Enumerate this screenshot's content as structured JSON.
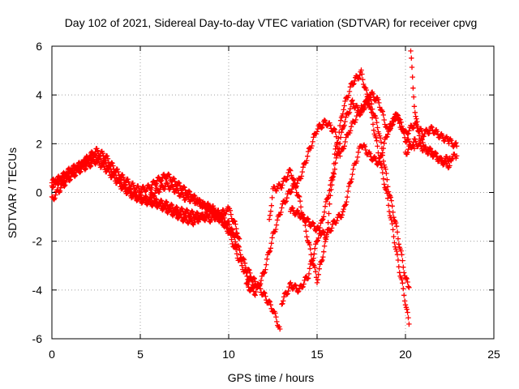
{
  "chart_data": {
    "type": "scatter",
    "title": "Day 102 of 2021, Sidereal Day-to-day VTEC variation (SDTVAR) for receiver cpvg",
    "xlabel": "GPS time / hours",
    "ylabel": "SDTVAR / TECUs",
    "xlim": [
      0,
      25
    ],
    "ylim": [
      -6,
      6
    ],
    "xticks": [
      "0",
      "5",
      "10",
      "15",
      "20",
      "25"
    ],
    "yticks": [
      "-6",
      "-4",
      "-2",
      "0",
      "2",
      "4",
      "6"
    ],
    "grid": true,
    "legend": "none",
    "marker": "plus",
    "color": "#ff0000",
    "series": [
      {
        "x": [
          0,
          0.5,
          1,
          1.5,
          2,
          2.5,
          3,
          3.5,
          4,
          4.5,
          5,
          5.5,
          6,
          6.5,
          7,
          7.5,
          8,
          8.5,
          9,
          9.5,
          10,
          10.3,
          10.6
        ],
        "y": [
          0.4,
          0.6,
          0.9,
          1.1,
          1.3,
          1.5,
          1.2,
          0.8,
          0.3,
          0.0,
          -0.2,
          -0.3,
          -0.4,
          -0.5,
          -0.7,
          -0.8,
          -0.9,
          -1.0,
          -1.1,
          -0.9,
          -0.7,
          -1.2,
          -1.9
        ]
      },
      {
        "x": [
          0,
          0.5,
          1,
          1.5,
          2,
          2.5,
          3,
          3.5,
          4,
          4.5,
          5,
          5.5,
          6,
          6.5,
          7,
          7.5,
          8,
          8.5,
          9,
          9.5,
          10,
          10.5
        ],
        "y": [
          -0.3,
          0.2,
          0.6,
          0.9,
          1.1,
          1.3,
          1.0,
          0.6,
          0.2,
          -0.1,
          -0.3,
          -0.4,
          -0.5,
          -0.7,
          -0.9,
          -1.1,
          -1.2,
          -1.0,
          -0.8,
          -1.1,
          -1.5,
          -1.8
        ]
      },
      {
        "x": [
          0,
          0.5,
          1,
          1.5,
          2,
          2.5,
          3,
          3.5,
          4,
          4.5,
          5,
          5.5,
          6,
          6.5,
          7,
          7.5,
          8,
          8.5,
          9,
          9.5,
          10,
          10.5,
          11,
          11.5
        ],
        "y": [
          0.3,
          0.5,
          0.8,
          1.0,
          1.4,
          1.7,
          1.5,
          1.0,
          0.6,
          0.3,
          0.1,
          0.2,
          0.5,
          0.7,
          0.4,
          0.1,
          -0.2,
          -0.5,
          -0.7,
          -1.0,
          -1.6,
          -2.6,
          -3.4,
          -3.8
        ]
      },
      {
        "x": [
          5.5,
          6,
          6.5,
          7,
          7.5,
          8,
          8.5,
          9,
          9.5,
          10,
          10.5,
          11,
          11.5,
          12,
          12.5,
          12.9
        ],
        "y": [
          -0.2,
          0.1,
          0.3,
          0.1,
          -0.2,
          -0.3,
          -0.5,
          -0.6,
          -0.9,
          -1.3,
          -2.2,
          -3.1,
          -3.7,
          -4.2,
          -4.8,
          -5.6
        ]
      },
      {
        "x": [
          11,
          11.5,
          12,
          12.5,
          13,
          13.5,
          14,
          14.5,
          15,
          15.5,
          16,
          16.3,
          16.8,
          17.5,
          18,
          18.5,
          19,
          19.5,
          20,
          20.2
        ],
        "y": [
          -3.8,
          -4.1,
          -3.3,
          -1.8,
          -0.6,
          0.1,
          0.5,
          1.6,
          2.6,
          2.9,
          2.5,
          1.5,
          2.5,
          3.5,
          3.8,
          2.5,
          0.3,
          -1.5,
          -3.5,
          -3.9
        ]
      },
      {
        "x": [
          12.3,
          12.5,
          13,
          13.5,
          14,
          14.5,
          15,
          15.5,
          16,
          16.5,
          17,
          17.5,
          18,
          18.5,
          19,
          19.5,
          20,
          20.2
        ],
        "y": [
          -1.2,
          0.1,
          0.3,
          0.9,
          -0.3,
          -2.0,
          -3.6,
          -2.0,
          1.5,
          3.5,
          4.5,
          4.9,
          3.5,
          1.5,
          -0.3,
          -2.5,
          -4.5,
          -5.4
        ]
      },
      {
        "x": [
          13,
          13.5,
          14,
          14.5,
          15,
          15.5,
          16,
          16.5,
          17,
          17.5,
          18,
          18.5,
          19,
          19.5,
          20,
          20.5
        ],
        "y": [
          -4.5,
          -3.8,
          -4.0,
          -3.4,
          -2.0,
          -0.5,
          1.0,
          2.8,
          3.7,
          3.2,
          4.1,
          3.7,
          2.5,
          3.2,
          2.2,
          1.8
        ]
      },
      {
        "x": [
          13.5,
          14,
          14.5,
          15,
          15.5,
          16,
          16.5,
          17,
          17.5,
          18,
          18.5,
          19,
          19.5,
          20,
          20.5,
          21,
          21.5,
          22,
          22.5,
          22.9
        ],
        "y": [
          -0.7,
          -0.9,
          -1.2,
          -1.5,
          -1.8,
          -1.2,
          -0.8,
          0.8,
          2.0,
          1.5,
          1.2,
          2.5,
          3.2,
          2.4,
          2.8,
          2.4,
          2.6,
          2.3,
          2.1,
          1.9
        ]
      },
      {
        "x": [
          20.3,
          20.4,
          20.5,
          20.7,
          20.9,
          21.2,
          21.6,
          22,
          22.5,
          22.9
        ],
        "y": [
          5.7,
          4.8,
          3.6,
          2.6,
          2.1,
          1.8,
          1.6,
          1.3,
          1.4,
          1.5
        ]
      },
      {
        "x": [
          20,
          20.5,
          21,
          21.5,
          22,
          22.5
        ],
        "y": [
          1.6,
          2.1,
          1.8,
          1.6,
          1.3,
          1.1
        ]
      }
    ]
  }
}
